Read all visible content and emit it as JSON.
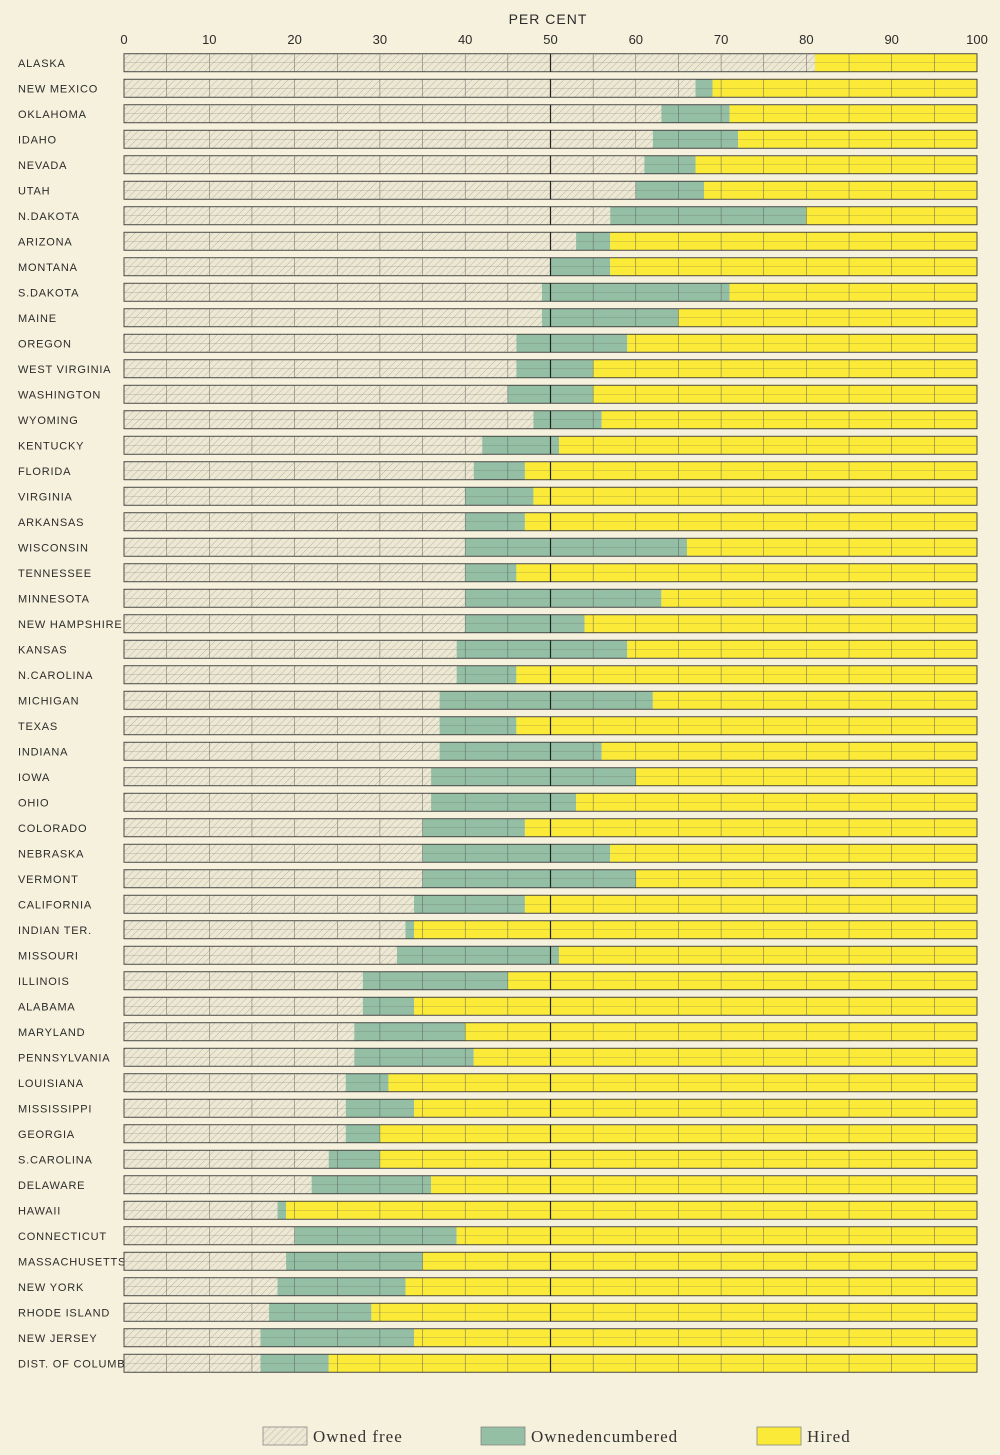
{
  "chart_data": {
    "type": "bar",
    "stacked": true,
    "orientation": "horizontal",
    "xlabel": "PER CENT",
    "xlim": [
      0,
      100
    ],
    "xticks": [
      0,
      10,
      20,
      30,
      40,
      50,
      60,
      70,
      80,
      90,
      100
    ],
    "grid": true,
    "legend_position": "bottom",
    "colors": {
      "owned_free": "#ece8d4",
      "owned_encumbered": "#94bfa5",
      "hired": "#fbea38",
      "grid": "#3a3a3a",
      "background": "#f6f1dc"
    },
    "series": [
      {
        "name": "Owned free",
        "key": "owned_free"
      },
      {
        "name": "Ownedencumbered",
        "key": "owned_encumbered"
      },
      {
        "name": "Hired",
        "key": "hired"
      }
    ],
    "rows": [
      {
        "category": "ALASKA",
        "owned_free": 81,
        "owned_encumbered": 0,
        "hired": 19
      },
      {
        "category": "NEW MEXICO",
        "owned_free": 67,
        "owned_encumbered": 2,
        "hired": 31
      },
      {
        "category": "OKLAHOMA",
        "owned_free": 63,
        "owned_encumbered": 8,
        "hired": 29
      },
      {
        "category": "IDAHO",
        "owned_free": 62,
        "owned_encumbered": 10,
        "hired": 28
      },
      {
        "category": "NEVADA",
        "owned_free": 61,
        "owned_encumbered": 6,
        "hired": 33
      },
      {
        "category": "UTAH",
        "owned_free": 60,
        "owned_encumbered": 8,
        "hired": 32
      },
      {
        "category": "N.DAKOTA",
        "owned_free": 57,
        "owned_encumbered": 23,
        "hired": 20
      },
      {
        "category": "ARIZONA",
        "owned_free": 53,
        "owned_encumbered": 4,
        "hired": 43
      },
      {
        "category": "MONTANA",
        "owned_free": 50,
        "owned_encumbered": 7,
        "hired": 43
      },
      {
        "category": "S.DAKOTA",
        "owned_free": 49,
        "owned_encumbered": 22,
        "hired": 29
      },
      {
        "category": "MAINE",
        "owned_free": 49,
        "owned_encumbered": 16,
        "hired": 35
      },
      {
        "category": "OREGON",
        "owned_free": 46,
        "owned_encumbered": 13,
        "hired": 41
      },
      {
        "category": "WEST VIRGINIA",
        "owned_free": 46,
        "owned_encumbered": 9,
        "hired": 45
      },
      {
        "category": "WASHINGTON",
        "owned_free": 45,
        "owned_encumbered": 10,
        "hired": 45
      },
      {
        "category": "WYOMING",
        "owned_free": 48,
        "owned_encumbered": 8,
        "hired": 44
      },
      {
        "category": "KENTUCKY",
        "owned_free": 42,
        "owned_encumbered": 9,
        "hired": 49
      },
      {
        "category": "FLORIDA",
        "owned_free": 41,
        "owned_encumbered": 6,
        "hired": 53
      },
      {
        "category": "VIRGINIA",
        "owned_free": 40,
        "owned_encumbered": 8,
        "hired": 52
      },
      {
        "category": "ARKANSAS",
        "owned_free": 40,
        "owned_encumbered": 7,
        "hired": 53
      },
      {
        "category": "WISCONSIN",
        "owned_free": 40,
        "owned_encumbered": 26,
        "hired": 34
      },
      {
        "category": "TENNESSEE",
        "owned_free": 40,
        "owned_encumbered": 6,
        "hired": 54
      },
      {
        "category": "MINNESOTA",
        "owned_free": 40,
        "owned_encumbered": 23,
        "hired": 37
      },
      {
        "category": "NEW HAMPSHIRE",
        "owned_free": 40,
        "owned_encumbered": 14,
        "hired": 46
      },
      {
        "category": "KANSAS",
        "owned_free": 39,
        "owned_encumbered": 20,
        "hired": 41
      },
      {
        "category": "N.CAROLINA",
        "owned_free": 39,
        "owned_encumbered": 7,
        "hired": 54
      },
      {
        "category": "MICHIGAN",
        "owned_free": 37,
        "owned_encumbered": 25,
        "hired": 38
      },
      {
        "category": "TEXAS",
        "owned_free": 37,
        "owned_encumbered": 9,
        "hired": 54
      },
      {
        "category": "INDIANA",
        "owned_free": 37,
        "owned_encumbered": 19,
        "hired": 44
      },
      {
        "category": "IOWA",
        "owned_free": 36,
        "owned_encumbered": 24,
        "hired": 40
      },
      {
        "category": "OHIO",
        "owned_free": 36,
        "owned_encumbered": 17,
        "hired": 47
      },
      {
        "category": "COLORADO",
        "owned_free": 35,
        "owned_encumbered": 12,
        "hired": 53
      },
      {
        "category": "NEBRASKA",
        "owned_free": 35,
        "owned_encumbered": 22,
        "hired": 43
      },
      {
        "category": "VERMONT",
        "owned_free": 35,
        "owned_encumbered": 25,
        "hired": 40
      },
      {
        "category": "CALIFORNIA",
        "owned_free": 34,
        "owned_encumbered": 13,
        "hired": 53
      },
      {
        "category": "INDIAN TER.",
        "owned_free": 33,
        "owned_encumbered": 1,
        "hired": 66
      },
      {
        "category": "MISSOURI",
        "owned_free": 32,
        "owned_encumbered": 19,
        "hired": 49
      },
      {
        "category": "ILLINOIS",
        "owned_free": 28,
        "owned_encumbered": 17,
        "hired": 55
      },
      {
        "category": "ALABAMA",
        "owned_free": 28,
        "owned_encumbered": 6,
        "hired": 66
      },
      {
        "category": "MARYLAND",
        "owned_free": 27,
        "owned_encumbered": 13,
        "hired": 60
      },
      {
        "category": "PENNSYLVANIA",
        "owned_free": 27,
        "owned_encumbered": 14,
        "hired": 59
      },
      {
        "category": "LOUISIANA",
        "owned_free": 26,
        "owned_encumbered": 5,
        "hired": 69
      },
      {
        "category": "MISSISSIPPI",
        "owned_free": 26,
        "owned_encumbered": 8,
        "hired": 66
      },
      {
        "category": "GEORGIA",
        "owned_free": 26,
        "owned_encumbered": 4,
        "hired": 70
      },
      {
        "category": "S.CAROLINA",
        "owned_free": 24,
        "owned_encumbered": 6,
        "hired": 70
      },
      {
        "category": "DELAWARE",
        "owned_free": 22,
        "owned_encumbered": 14,
        "hired": 64
      },
      {
        "category": "HAWAII",
        "owned_free": 18,
        "owned_encumbered": 1,
        "hired": 81
      },
      {
        "category": "CONNECTICUT",
        "owned_free": 20,
        "owned_encumbered": 19,
        "hired": 61
      },
      {
        "category": "MASSACHUSETTS",
        "owned_free": 19,
        "owned_encumbered": 16,
        "hired": 65
      },
      {
        "category": "NEW YORK",
        "owned_free": 18,
        "owned_encumbered": 15,
        "hired": 67
      },
      {
        "category": "RHODE ISLAND",
        "owned_free": 17,
        "owned_encumbered": 12,
        "hired": 71
      },
      {
        "category": "NEW JERSEY",
        "owned_free": 16,
        "owned_encumbered": 18,
        "hired": 66
      },
      {
        "category": "DIST. OF COLUMBIA",
        "owned_free": 16,
        "owned_encumbered": 8,
        "hired": 76
      }
    ]
  }
}
